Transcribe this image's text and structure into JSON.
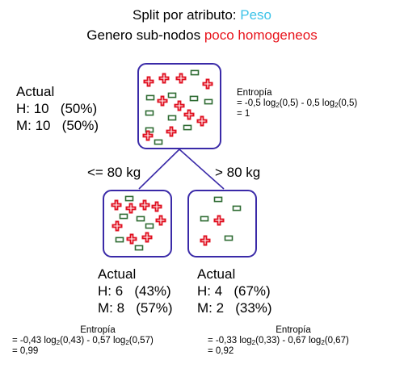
{
  "title": {
    "line1_prefix": "Split por atributo: ",
    "line1_attr": "Peso",
    "line2_prefix": "Genero sub-nodos ",
    "line2_highlight": "poco homogeneos"
  },
  "colors": {
    "attribute": "#3cc3e8",
    "highlight": "#e8141c",
    "node_border": "#3a2aa8",
    "edge": "#3a2aa8",
    "cross": "#e01020",
    "rect": "#2e6b32"
  },
  "root": {
    "label": "Actual",
    "h": "H: 10   (50%)",
    "m": "M: 10   (50%)",
    "entropy_title": "Entropía",
    "entropy_eq": {
      "a": "= -0,5 log",
      "b": "(0,5) - 0,5 log",
      "c": "(0,5)",
      "sub": "2"
    },
    "entropy_result": "= 1",
    "icons": {
      "crosses": 10,
      "rects": 10
    }
  },
  "edges": {
    "left": "<= 80 kg",
    "right": "> 80 kg"
  },
  "left": {
    "label": "Actual",
    "h": "H: 6   (43%)",
    "m": "M: 8   (57%)",
    "entropy_title": "Entropía",
    "entropy_eq": {
      "a": "= -0,43 log",
      "b": "(0,43) - 0,57 log",
      "c": "(0,57)",
      "sub": "2"
    },
    "entropy_result": "= 0,99",
    "icons": {
      "crosses": 8,
      "rects": 6
    }
  },
  "right": {
    "label": "Actual",
    "h": "H: 4   (67%)",
    "m": "M: 2   (33%)",
    "entropy_title": "Entropía",
    "entropy_eq": {
      "a": "= -0,33 log",
      "b": "(0,33) - 0,67 log",
      "c": "(0,67)",
      "sub": "2"
    },
    "entropy_result": "= 0,92",
    "icons": {
      "crosses": 2,
      "rects": 4
    }
  }
}
